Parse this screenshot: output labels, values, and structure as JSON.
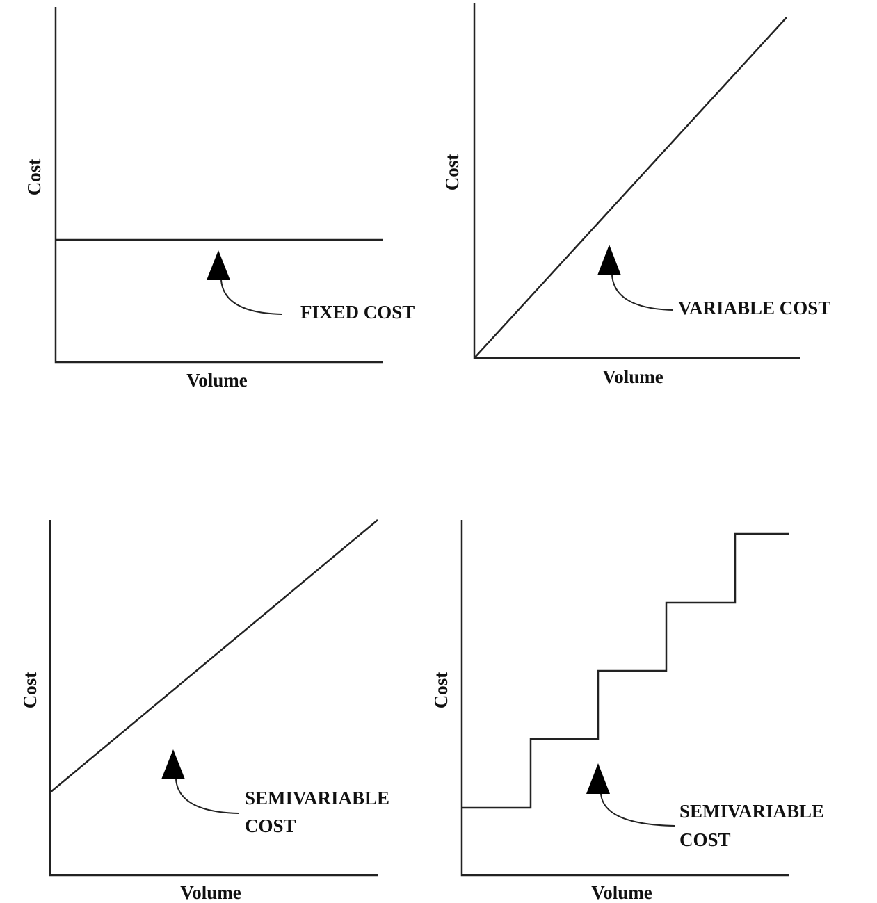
{
  "panels": [
    {
      "y_label": "Cost",
      "x_label": "Volume",
      "annotation": [
        "FIXED COST"
      ]
    },
    {
      "y_label": "Cost",
      "x_label": "Volume",
      "annotation": [
        "VARIABLE COST"
      ]
    },
    {
      "y_label": "Cost",
      "x_label": "Volume",
      "annotation": [
        "SEMIVARIABLE",
        "COST"
      ]
    },
    {
      "y_label": "Cost",
      "x_label": "Volume",
      "annotation": [
        "SEMIVARIABLE",
        "COST"
      ]
    }
  ]
}
